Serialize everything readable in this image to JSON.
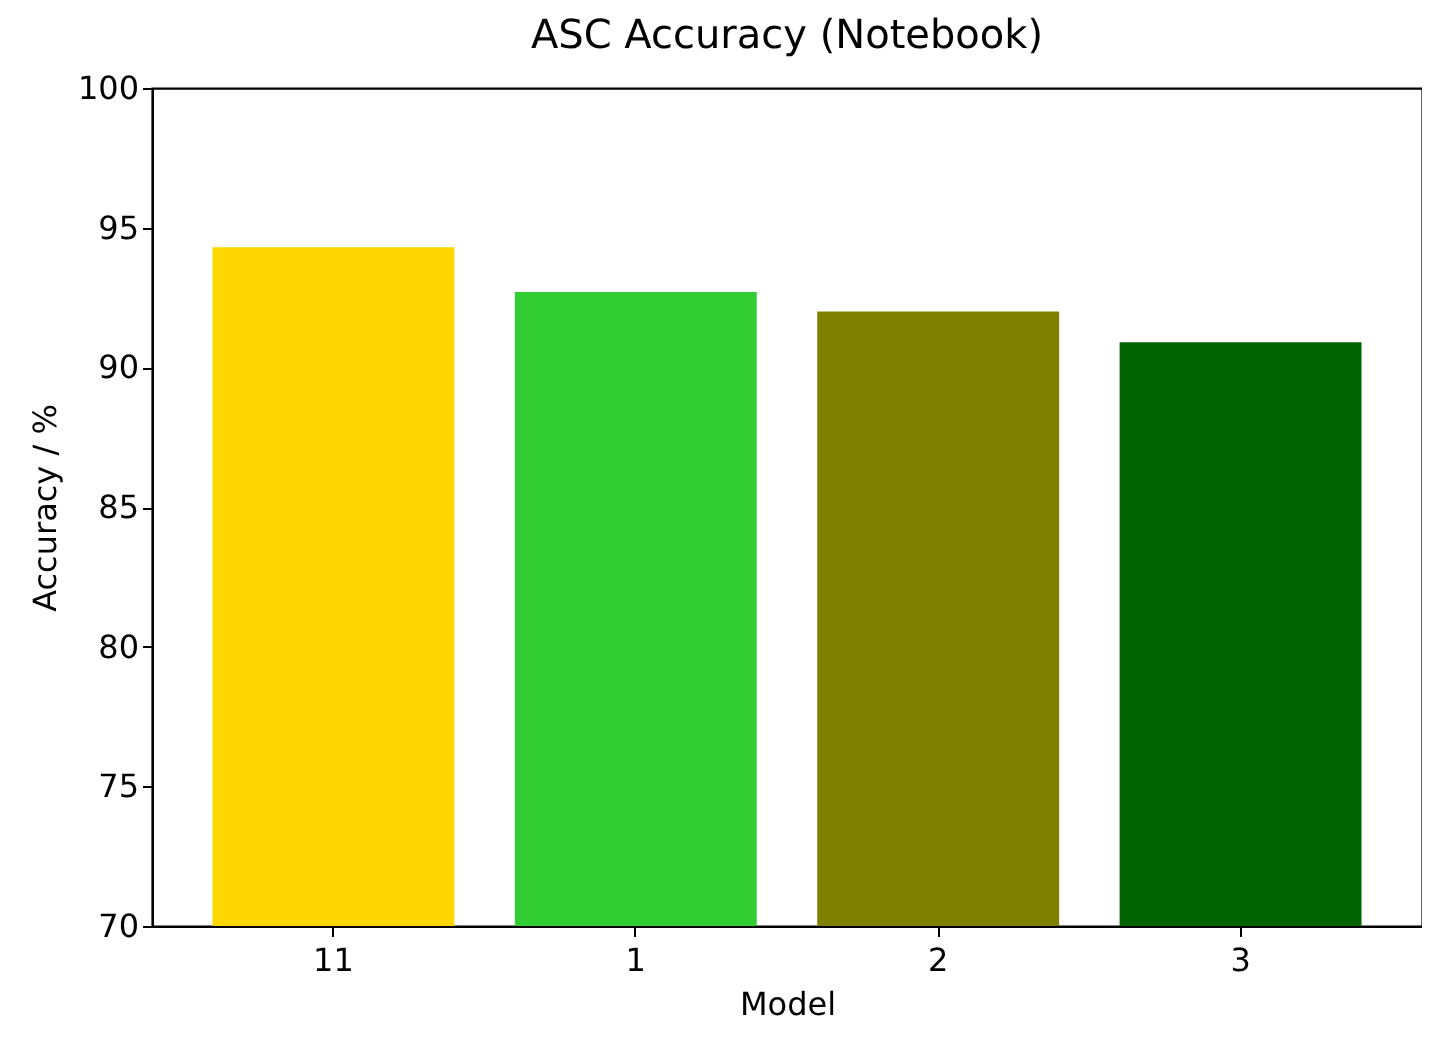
{
  "chart_data": {
    "type": "bar",
    "title": "ASC Accuracy (Notebook)",
    "xlabel": "Model",
    "ylabel": "Accuracy / %",
    "categories": [
      "11",
      "1",
      "2",
      "3"
    ],
    "values": [
      94.3,
      92.7,
      92.0,
      90.9
    ],
    "colors": [
      "#ffd700",
      "#32cd32",
      "#808000",
      "#006400"
    ],
    "ylim": [
      70,
      100
    ],
    "yticks": [
      70,
      75,
      80,
      85,
      90,
      95,
      100
    ]
  }
}
